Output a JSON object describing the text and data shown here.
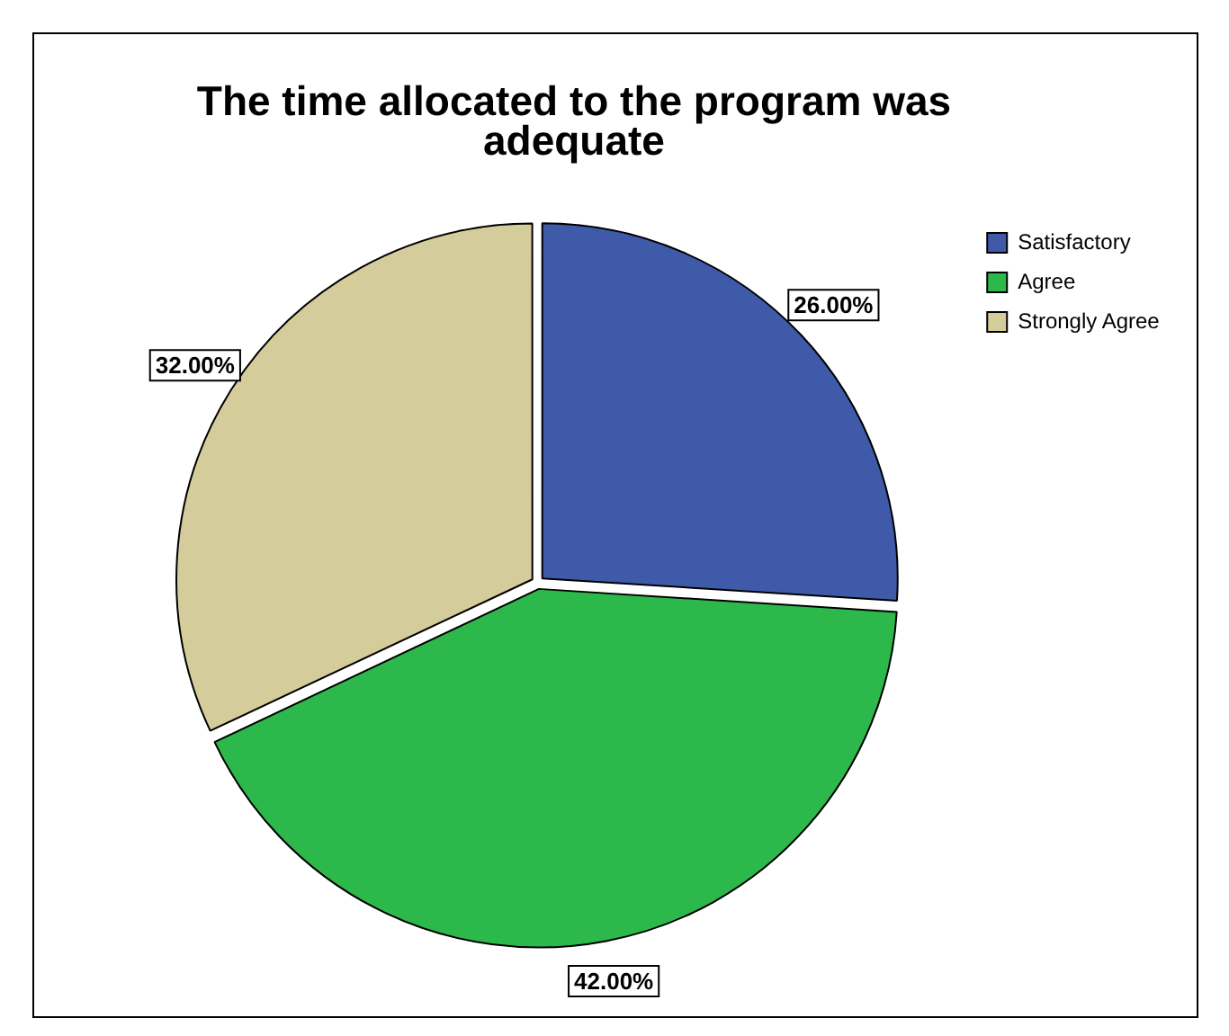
{
  "chart_data": {
    "type": "pie",
    "title": "The time allocated to the program was adequate",
    "categories": [
      "Satisfactory",
      "Agree",
      "Strongly Agree"
    ],
    "values": [
      26,
      42,
      32
    ],
    "colors": [
      "#3f5aa9",
      "#2db84b",
      "#d4cc9a"
    ],
    "value_labels": [
      "26.00%",
      "42.00%",
      "32.00%"
    ],
    "legend": "top right"
  }
}
